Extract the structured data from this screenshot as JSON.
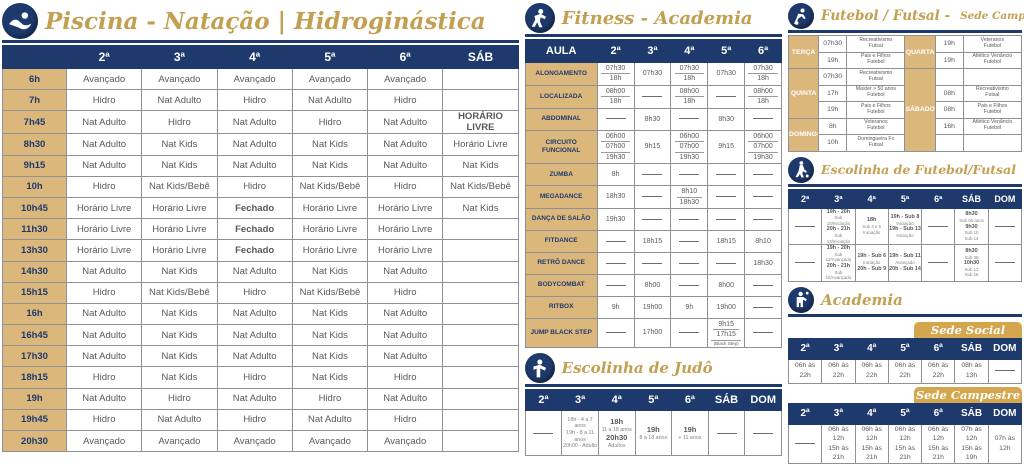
{
  "colors": {
    "navy": "#1e3a6d",
    "tan": "#dcb77c",
    "gold": "#c3a051",
    "red": "#e32726",
    "badge_gold": "#d4a74f"
  },
  "piscina": {
    "title": "Piscina - Natação | Hidroginástica",
    "days": [
      "2ª",
      "3ª",
      "4ª",
      "5ª",
      "6ª",
      "SÁB"
    ],
    "rows": [
      {
        "time": "6h",
        "cells": [
          "Avançado",
          "Avançado",
          "Avançado",
          "Avançado",
          "Avançado",
          ""
        ]
      },
      {
        "time": "7h",
        "cells": [
          "Hidro",
          "Nat Adulto",
          "Hidro",
          "Nat Adulto",
          "Hidro",
          ""
        ]
      },
      {
        "time": "7h45",
        "cells": [
          "Nat Adulto",
          "Hidro",
          "Nat Adulto",
          "Hidro",
          "Nat Adulto",
          {
            "t": "HORÁRIO LIVRE",
            "red": true
          }
        ]
      },
      {
        "time": "8h30",
        "cells": [
          "Nat Adulto",
          "Nat Kids",
          "Nat Adulto",
          "Nat Kids",
          "Nat Adulto",
          "Horário Livre"
        ]
      },
      {
        "time": "9h15",
        "cells": [
          "Nat Adulto",
          "Nat Kids",
          "Nat Adulto",
          "Nat Kids",
          "Nat Adulto",
          "Nat Kids"
        ]
      },
      {
        "time": "10h",
        "cells": [
          "Hidro",
          "Nat Kids/Bebê",
          "Hidro",
          "Nat Kids/Bebê",
          "Hidro",
          "Nat Kids/Bebê"
        ]
      },
      {
        "time": "10h45",
        "cells": [
          "Horário Livre",
          "Horário Livre",
          {
            "t": "Fechado",
            "red": true
          },
          "Horário Livre",
          "Horário Livre",
          "Nat Kids"
        ]
      },
      {
        "time": "11h30",
        "cells": [
          "Horário Livre",
          "Horário Livre",
          {
            "t": "Fechado",
            "red": true
          },
          "Horário Livre",
          "Horário Livre",
          ""
        ]
      },
      {
        "time": "13h30",
        "cells": [
          "Horário Livre",
          "Horário Livre",
          {
            "t": "Fechado",
            "red": true
          },
          "Horário Livre",
          "Horário Livre",
          ""
        ]
      },
      {
        "time": "14h30",
        "cells": [
          "Nat Adulto",
          "Nat Kids",
          "Nat Adulto",
          "Nat Kids",
          "Nat Adulto",
          ""
        ]
      },
      {
        "time": "15h15",
        "cells": [
          "Hidro",
          "Nat Kids/Bebê",
          "Hidro",
          "Nat Kids/Bebê",
          "Hidro",
          ""
        ]
      },
      {
        "time": "16h",
        "cells": [
          "Nat Adulto",
          "Nat Kids",
          "Nat Adulto",
          "Nat Kids",
          "Nat Adulto",
          ""
        ]
      },
      {
        "time": "16h45",
        "cells": [
          "Nat Adulto",
          "Nat Kids",
          "Nat Adulto",
          "Nat Kids",
          "Nat Adulto",
          ""
        ]
      },
      {
        "time": "17h30",
        "cells": [
          "Nat Adulto",
          "Nat Kids",
          "Nat Adulto",
          "Nat Kids",
          "Nat Adulto",
          ""
        ]
      },
      {
        "time": "18h15",
        "cells": [
          "Hidro",
          "Nat Kids",
          "Hidro",
          "Nat Kids",
          "Hidro",
          ""
        ]
      },
      {
        "time": "19h",
        "cells": [
          "Nat Adulto",
          "Hidro",
          "Nat Adulto",
          "Hidro",
          "Nat Adulto",
          ""
        ]
      },
      {
        "time": "19h45",
        "cells": [
          "Hidro",
          "Nat Adulto",
          "Hidro",
          "Nat Adulto",
          "Hidro",
          ""
        ]
      },
      {
        "time": "20h30",
        "cells": [
          "Avançado",
          "Avançado",
          "Avançado",
          "Avançado",
          "Avançado",
          ""
        ]
      }
    ]
  },
  "fitness": {
    "title": "Fitness - Academia",
    "col_header": "AULA",
    "days": [
      "2ª",
      "3ª",
      "4ª",
      "5ª",
      "6ª"
    ],
    "rows": [
      {
        "label": "ALONGAMENTO",
        "cells": [
          [
            "07h30",
            "18h"
          ],
          [
            "07h30"
          ],
          [
            "07h30",
            "18h"
          ],
          [
            "07h30"
          ],
          [
            "07h30",
            "18h"
          ]
        ]
      },
      {
        "label": "LOCALIZADA",
        "cells": [
          [
            "08h00",
            "18h"
          ],
          null,
          [
            "08h00",
            "18h"
          ],
          null,
          [
            "08h00",
            "18h"
          ]
        ]
      },
      {
        "label": "ABDOMINAL",
        "cells": [
          null,
          [
            "8h30"
          ],
          null,
          [
            "8h30"
          ],
          null
        ]
      },
      {
        "label": "CIRCUITO FUNCIONAL",
        "cells": [
          [
            "06h00",
            "07h00",
            "19h30"
          ],
          [
            "9h15"
          ],
          [
            "06h00",
            "07h00",
            "19h30"
          ],
          [
            "9h15"
          ],
          [
            "06h00",
            "07h00",
            "19h30"
          ]
        ]
      },
      {
        "label": "ZUMBA",
        "cells": [
          [
            "8h"
          ],
          null,
          null,
          null,
          null
        ]
      },
      {
        "label": "MEGADANCE",
        "cells": [
          [
            "18h30"
          ],
          null,
          [
            "8h10",
            "18h30"
          ],
          null,
          null
        ]
      },
      {
        "label": "DANÇA DE SALÃO",
        "cells": [
          [
            "19h30"
          ],
          null,
          null,
          null,
          null
        ]
      },
      {
        "label": "FITDANCE",
        "cells": [
          null,
          [
            "18h15"
          ],
          null,
          [
            "18h15"
          ],
          [
            "8h10"
          ]
        ]
      },
      {
        "label": "RETRÔ DANCE",
        "cells": [
          null,
          null,
          null,
          null,
          [
            "18h30"
          ]
        ]
      },
      {
        "label": "BODYCOMBAT",
        "cells": [
          null,
          [
            "8h00"
          ],
          null,
          [
            "8h00"
          ],
          null
        ]
      },
      {
        "label": "RITBOX",
        "cells": [
          [
            "9h"
          ],
          [
            "19h00"
          ],
          [
            "9h"
          ],
          [
            "19h00"
          ],
          null
        ]
      },
      {
        "label": "JUMP BLACK STEP",
        "cells": [
          null,
          [
            "17h00"
          ],
          null,
          [
            "9h15",
            "17h15",
            "(Black Step)"
          ],
          null
        ]
      }
    ]
  },
  "judo": {
    "title": "Escolinha de Judô",
    "days": [
      "2ª",
      "3ª",
      "4ª",
      "5ª",
      "6ª",
      "SÁB",
      "DOM"
    ],
    "cells": [
      null,
      [
        {
          "t": "18h - 4 a 7 anos",
          "f": "s"
        },
        {
          "t": "19h - 8 a 11 anos",
          "f": "s"
        },
        {
          "t": "20h00 - Adulto",
          "f": "s"
        }
      ],
      [
        {
          "t": "18h",
          "f": "b"
        },
        {
          "t": "11 a 18 anos",
          "f": "s"
        },
        {
          "t": "20h30",
          "f": "b"
        },
        {
          "t": "Adultos",
          "f": "s"
        }
      ],
      [
        {
          "t": "19h",
          "f": "b"
        },
        {
          "t": "8 a 18 anos",
          "f": "s"
        }
      ],
      [
        {
          "t": "19h",
          "f": "b"
        },
        {
          "t": "+ 11 anos",
          "f": "s"
        }
      ],
      null,
      null
    ]
  },
  "futebol": {
    "title": "Futebol / Futsal -",
    "title_suffix": "Sede Campestre",
    "left_groups": [
      {
        "day": "TERÇA",
        "entries": [
          {
            "time": "07h30",
            "act": [
              "Recreativismo",
              "Futsal"
            ]
          },
          {
            "time": "19h",
            "act": [
              "Pais e Filhos",
              "Futebol"
            ]
          }
        ]
      },
      {
        "day": "QUINTA",
        "entries": [
          {
            "time": "07h30",
            "act": [
              "Recreativismo",
              "Futsal"
            ]
          },
          {
            "time": "17h",
            "act": [
              "Master > 50 anos",
              "Futebol"
            ]
          },
          {
            "time": "19h",
            "act": [
              "Pais e Filhos",
              "Futebol"
            ]
          }
        ]
      },
      {
        "day": "DOMINGO",
        "entries": [
          {
            "time": "8h",
            "act": [
              "Veteranos",
              "Futebol"
            ]
          },
          {
            "time": "10h",
            "act": [
              "Domingueira Fc",
              "Futsal"
            ]
          }
        ]
      }
    ],
    "right_groups": [
      {
        "day": "QUARTA",
        "entries": [
          {
            "time": "19h",
            "act": [
              "Veteranos",
              "Futebol"
            ]
          },
          {
            "time": "19h",
            "act": [
              "Atlético Venâncio",
              "Futebol"
            ]
          }
        ]
      },
      {
        "day": "SÁBADO",
        "entries": [
          {
            "time": "",
            "act": [
              "",
              ""
            ]
          },
          {
            "time": "08h",
            "act": [
              "Recreativismo",
              "Futsal"
            ]
          },
          {
            "time": "08h",
            "act": [
              "Pais e Filhos",
              "Futebol"
            ]
          },
          {
            "time": "16h",
            "act": [
              "Atlético Venâncio",
              "Futebol"
            ]
          },
          {
            "time": "",
            "act": [
              "",
              ""
            ]
          }
        ]
      }
    ]
  },
  "escolinha_futebol": {
    "title": "Escolinha de Futebol/Futsal",
    "days": [
      "2ª",
      "3ª",
      "4ª",
      "5ª",
      "6ª",
      "SÁB",
      "DOM"
    ],
    "rows": [
      [
        null,
        [
          {
            "t": "19h - 20h",
            "f": "b"
          },
          {
            "t": "Sub 10/Iniciação",
            "f": "s"
          },
          {
            "t": "20h - 21h",
            "f": "b"
          },
          {
            "t": "Sub 13/Iniciação",
            "f": "s"
          }
        ],
        [
          {
            "t": "18h",
            "f": "b"
          },
          {
            "t": "Sub 4 e 5",
            "f": "s"
          },
          {
            "t": "Iniciação",
            "f": "s"
          }
        ],
        [
          {
            "t": "19h - Sub 8",
            "f": "b"
          },
          {
            "t": "Iniciação",
            "f": "s"
          },
          {
            "t": "19h - Sub 13",
            "f": "b"
          },
          {
            "t": "Iniciação",
            "f": "s"
          }
        ],
        null,
        [
          {
            "t": "8h30",
            "f": "b"
          },
          {
            "t": "Sub 06 anos",
            "f": "s"
          },
          {
            "t": "9h30",
            "f": "b"
          },
          {
            "t": "Sub 10",
            "f": "s"
          },
          {
            "t": "Sub 14",
            "f": "s"
          }
        ],
        null
      ],
      [
        null,
        [
          {
            "t": "19h - 20h",
            "f": "b"
          },
          {
            "t": "Sub 12/Avançado",
            "f": "s"
          },
          {
            "t": "20h - 21h",
            "f": "b"
          },
          {
            "t": "Sub 15/Avançado",
            "f": "s"
          }
        ],
        [
          {
            "t": "19h - Sub 6",
            "f": "b"
          },
          {
            "t": "Iniciação",
            "f": "s"
          },
          {
            "t": "20h - Sub 9",
            "f": "b"
          }
        ],
        [
          {
            "t": "19h - Sub 11",
            "f": "b"
          },
          {
            "t": "Avançado",
            "f": "s"
          },
          {
            "t": "20h - Sub 14",
            "f": "b"
          }
        ],
        null,
        [
          {
            "t": "8h30",
            "f": "b"
          },
          {
            "t": "Sub 08",
            "f": "s"
          },
          {
            "t": "10h30",
            "f": "b"
          },
          {
            "t": "Sub 12",
            "f": "s"
          },
          {
            "t": "Sub 16",
            "f": "s"
          }
        ],
        null
      ]
    ]
  },
  "academia": {
    "title": "Academia",
    "sede_social": {
      "label": "Sede Social",
      "days": [
        "2ª",
        "3ª",
        "4ª",
        "5ª",
        "6ª",
        "SÁB",
        "DOM"
      ],
      "cells": [
        [
          "06h às 22h"
        ],
        [
          "06h às 22h"
        ],
        [
          "06h às 22h"
        ],
        [
          "06h às 22h"
        ],
        [
          "06h às 22h"
        ],
        [
          "08h às 13h"
        ],
        null
      ]
    },
    "sede_campestre": {
      "label": "Sede Campestre",
      "days": [
        "2ª",
        "3ª",
        "4ª",
        "5ª",
        "6ª",
        "SÁB",
        "DOM"
      ],
      "cells": [
        null,
        [
          "06h às 12h",
          "15h às 21h"
        ],
        [
          "06h às 12h",
          "15h às 21h"
        ],
        [
          "06h às 12h",
          "15h às 21h"
        ],
        [
          "06h às 12h",
          "15h às 21h"
        ],
        [
          "07h às 12h",
          "15h às 19h"
        ],
        [
          "07h às 12h"
        ]
      ]
    }
  }
}
